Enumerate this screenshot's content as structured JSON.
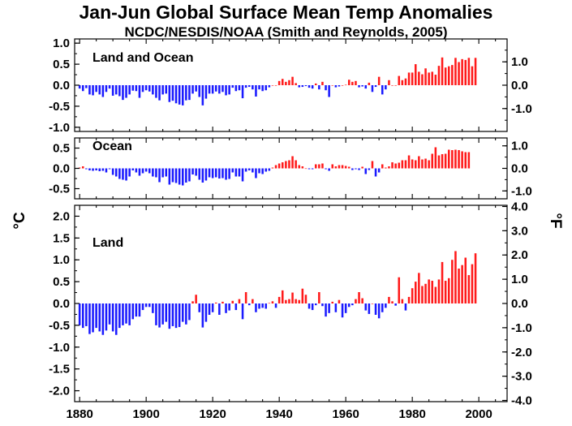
{
  "title": "Jan-Jun Global Surface Mean Temp Anomalies",
  "subtitle": "NCDC/NESDIS/NOAA (Smith and Reynolds, 2005)",
  "colors": {
    "positive": "#ff1a1a",
    "negative": "#1a1aff",
    "axis": "#000000"
  },
  "chart_data": {
    "type": "bar",
    "x_ticks": [
      "1880",
      "1900",
      "1920",
      "1940",
      "1960",
      "1980",
      "2000"
    ],
    "xlim": [
      1878.5,
      2008.5
    ],
    "left_unit": "°C",
    "right_unit": "°F",
    "panels": [
      {
        "name": "Land and Ocean",
        "ylim": [
          -1.1,
          1.1
        ],
        "left_ticks": [
          "1.0",
          "0.5",
          "0.0",
          "-0.5",
          "-1.0"
        ],
        "right_ticks": [
          "1.0",
          "0.0",
          "-1.0"
        ],
        "start_year": 1880,
        "values": [
          -0.08,
          -0.14,
          -0.07,
          -0.22,
          -0.24,
          -0.16,
          -0.22,
          -0.28,
          -0.16,
          -0.08,
          -0.25,
          -0.22,
          -0.26,
          -0.35,
          -0.3,
          -0.22,
          -0.13,
          -0.14,
          -0.3,
          -0.16,
          -0.12,
          -0.15,
          -0.22,
          -0.3,
          -0.36,
          -0.22,
          -0.2,
          -0.4,
          -0.37,
          -0.43,
          -0.46,
          -0.48,
          -0.36,
          -0.35,
          -0.2,
          -0.15,
          -0.28,
          -0.48,
          -0.32,
          -0.2,
          -0.2,
          -0.15,
          -0.2,
          -0.16,
          -0.24,
          -0.22,
          -0.06,
          -0.14,
          -0.12,
          -0.31,
          -0.06,
          -0.04,
          -0.1,
          -0.27,
          -0.1,
          -0.14,
          -0.12,
          -0.05,
          0.0,
          0.0,
          0.1,
          0.15,
          0.08,
          0.12,
          0.2,
          0.05,
          -0.05,
          -0.04,
          -0.02,
          -0.06,
          -0.08,
          0.04,
          -0.1,
          0.08,
          -0.12,
          -0.28,
          0.0,
          -0.05,
          -0.03,
          0.0,
          0.01,
          0.13,
          0.08,
          0.1,
          -0.05,
          -0.03,
          -0.08,
          0.06,
          -0.16,
          -0.04,
          0.2,
          -0.22,
          -0.1,
          0.12,
          0.0,
          0.0,
          0.22,
          0.12,
          0.16,
          0.3,
          0.3,
          0.5,
          0.32,
          0.26,
          0.4,
          0.3,
          0.32,
          0.25,
          0.46,
          0.66,
          0.42,
          0.45,
          0.48,
          0.65,
          0.55,
          0.62,
          0.6,
          0.65,
          0.45,
          0.65
        ]
      },
      {
        "name": "Ocean",
        "ylim": [
          -0.75,
          0.75
        ],
        "left_ticks": [
          "0.5",
          "0.0",
          "-0.5"
        ],
        "right_ticks": [
          "1.0",
          "0.0",
          "-1.0"
        ],
        "start_year": 1880,
        "values": [
          0.02,
          0.05,
          -0.02,
          -0.05,
          -0.06,
          -0.05,
          -0.07,
          -0.06,
          -0.1,
          -0.02,
          -0.16,
          -0.2,
          -0.26,
          -0.28,
          -0.3,
          -0.2,
          -0.05,
          -0.1,
          -0.18,
          -0.12,
          -0.08,
          -0.12,
          -0.2,
          -0.22,
          -0.34,
          -0.22,
          -0.2,
          -0.4,
          -0.34,
          -0.36,
          -0.4,
          -0.42,
          -0.35,
          -0.32,
          -0.15,
          -0.18,
          -0.28,
          -0.35,
          -0.3,
          -0.22,
          -0.24,
          -0.22,
          -0.25,
          -0.24,
          -0.28,
          -0.26,
          -0.1,
          -0.2,
          -0.2,
          -0.32,
          -0.08,
          -0.05,
          -0.1,
          -0.24,
          -0.12,
          -0.14,
          -0.08,
          -0.06,
          0.02,
          0.08,
          0.12,
          0.15,
          0.18,
          0.2,
          0.3,
          0.2,
          0.08,
          0.05,
          0.0,
          -0.02,
          -0.02,
          0.1,
          0.1,
          0.12,
          -0.02,
          -0.06,
          0.1,
          0.05,
          0.08,
          0.08,
          0.06,
          0.04,
          -0.04,
          -0.02,
          -0.04,
          0.04,
          -0.14,
          -0.04,
          0.18,
          -0.2,
          -0.1,
          0.1,
          0.02,
          0.05,
          0.15,
          0.12,
          0.14,
          0.2,
          0.2,
          0.32,
          0.22,
          0.2,
          0.3,
          0.22,
          0.24,
          0.2,
          0.36,
          0.52,
          0.32,
          0.35,
          0.36,
          0.46,
          0.45,
          0.46,
          0.45,
          0.42,
          0.4,
          0.4
        ]
      },
      {
        "name": "Land",
        "ylim": [
          -2.25,
          2.25
        ],
        "left_ticks": [
          "2.0",
          "1.5",
          "1.0",
          "0.5",
          "0.0",
          "-0.5",
          "-1.0",
          "-1.5",
          "-2.0"
        ],
        "right_ticks": [
          "4.0",
          "3.0",
          "2.0",
          "1.0",
          "0.0",
          "-1.0",
          "-2.0",
          "-3.0",
          "-4.0"
        ],
        "start_year": 1880,
        "values": [
          -0.5,
          -0.56,
          -0.52,
          -0.7,
          -0.66,
          -0.56,
          -0.64,
          -0.72,
          -0.62,
          -0.48,
          -0.64,
          -0.72,
          -0.56,
          -0.5,
          -0.46,
          -0.5,
          -0.36,
          -0.3,
          -0.3,
          -0.15,
          -0.08,
          -0.08,
          -0.22,
          -0.5,
          -0.55,
          -0.48,
          -0.42,
          -0.58,
          -0.52,
          -0.56,
          -0.54,
          -0.42,
          -0.48,
          -0.38,
          0.05,
          0.2,
          -0.2,
          -0.55,
          -0.42,
          -0.26,
          -0.2,
          0.02,
          -0.26,
          0.04,
          -0.22,
          -0.16,
          0.06,
          -0.15,
          0.1,
          -0.36,
          0.26,
          -0.04,
          0.1,
          -0.2,
          -0.12,
          -0.1,
          -0.12,
          0.01,
          0.05,
          -0.1,
          0.15,
          0.3,
          0.08,
          0.1,
          0.25,
          0.1,
          0.08,
          0.34,
          0.2,
          -0.12,
          -0.15,
          -0.04,
          0.26,
          -0.06,
          -0.3,
          -0.22,
          0.04,
          -0.2,
          0.08,
          -0.32,
          -0.22,
          -0.08,
          -0.04,
          0.1,
          0.26,
          0.12,
          -0.16,
          -0.24,
          0.0,
          -0.26,
          -0.34,
          -0.2,
          -0.1,
          0.15,
          0.05,
          -0.05,
          0.6,
          0.1,
          -0.16,
          0.15,
          0.35,
          0.5,
          0.7,
          0.4,
          0.45,
          0.55,
          0.52,
          0.38,
          0.55,
          0.95,
          0.52,
          0.58,
          1.0,
          1.2,
          0.8,
          0.88,
          1.05,
          0.65,
          0.9,
          1.15
        ]
      }
    ]
  }
}
